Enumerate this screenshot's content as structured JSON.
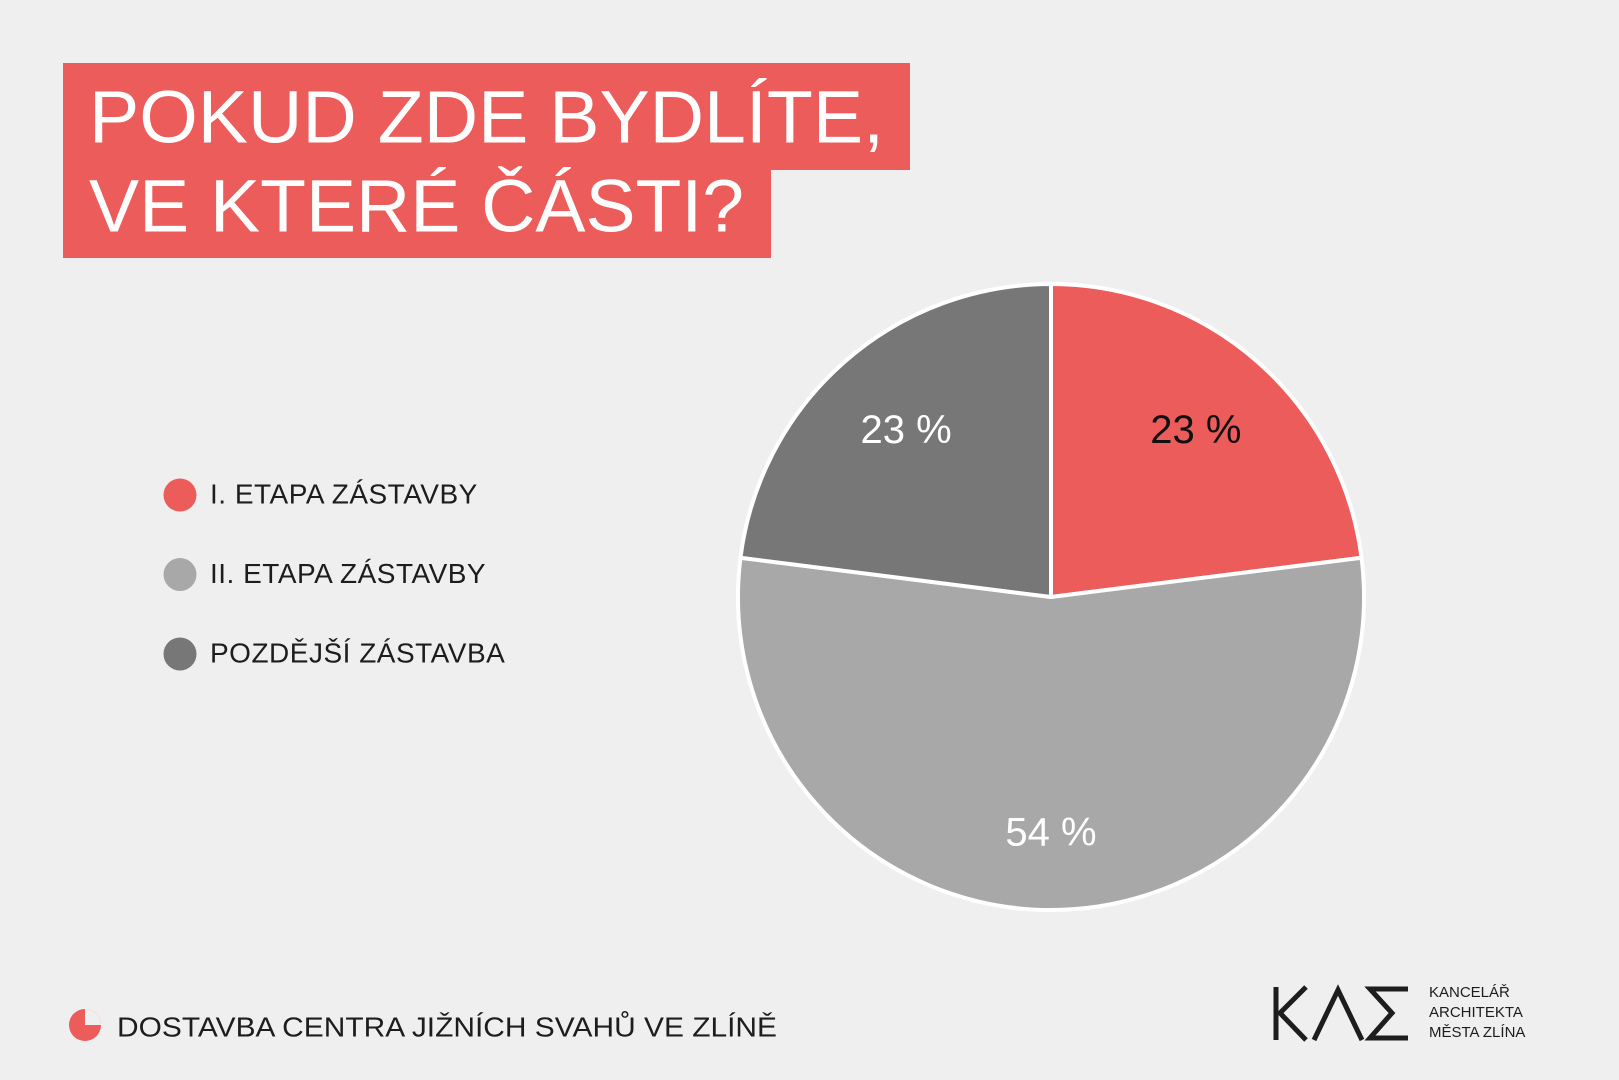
{
  "chart_data": {
    "type": "pie",
    "title": [
      "POKUD ZDE BYDLÍTE,",
      "VE KTERÉ ČÁSTI?"
    ],
    "categories": [
      "I. ETAPA ZÁSTAVBY",
      "II. ETAPA ZÁSTAVBY",
      "POZDĚJŠÍ ZÁSTAVBA"
    ],
    "values": [
      23,
      54,
      23
    ],
    "value_labels": [
      "23 %",
      "54 %",
      "23 %"
    ],
    "colors": [
      "#eb5c5a",
      "#a8a8a8",
      "#777777"
    ]
  },
  "footer": {
    "project": "DOSTAVBA CENTRA JIŽNÍCH SVAHŮ VE ZLÍNĚ",
    "logo_text": [
      "KANCELÁŘ",
      "ARCHITEKTA",
      "MĚSTA ZLÍNA"
    ]
  }
}
